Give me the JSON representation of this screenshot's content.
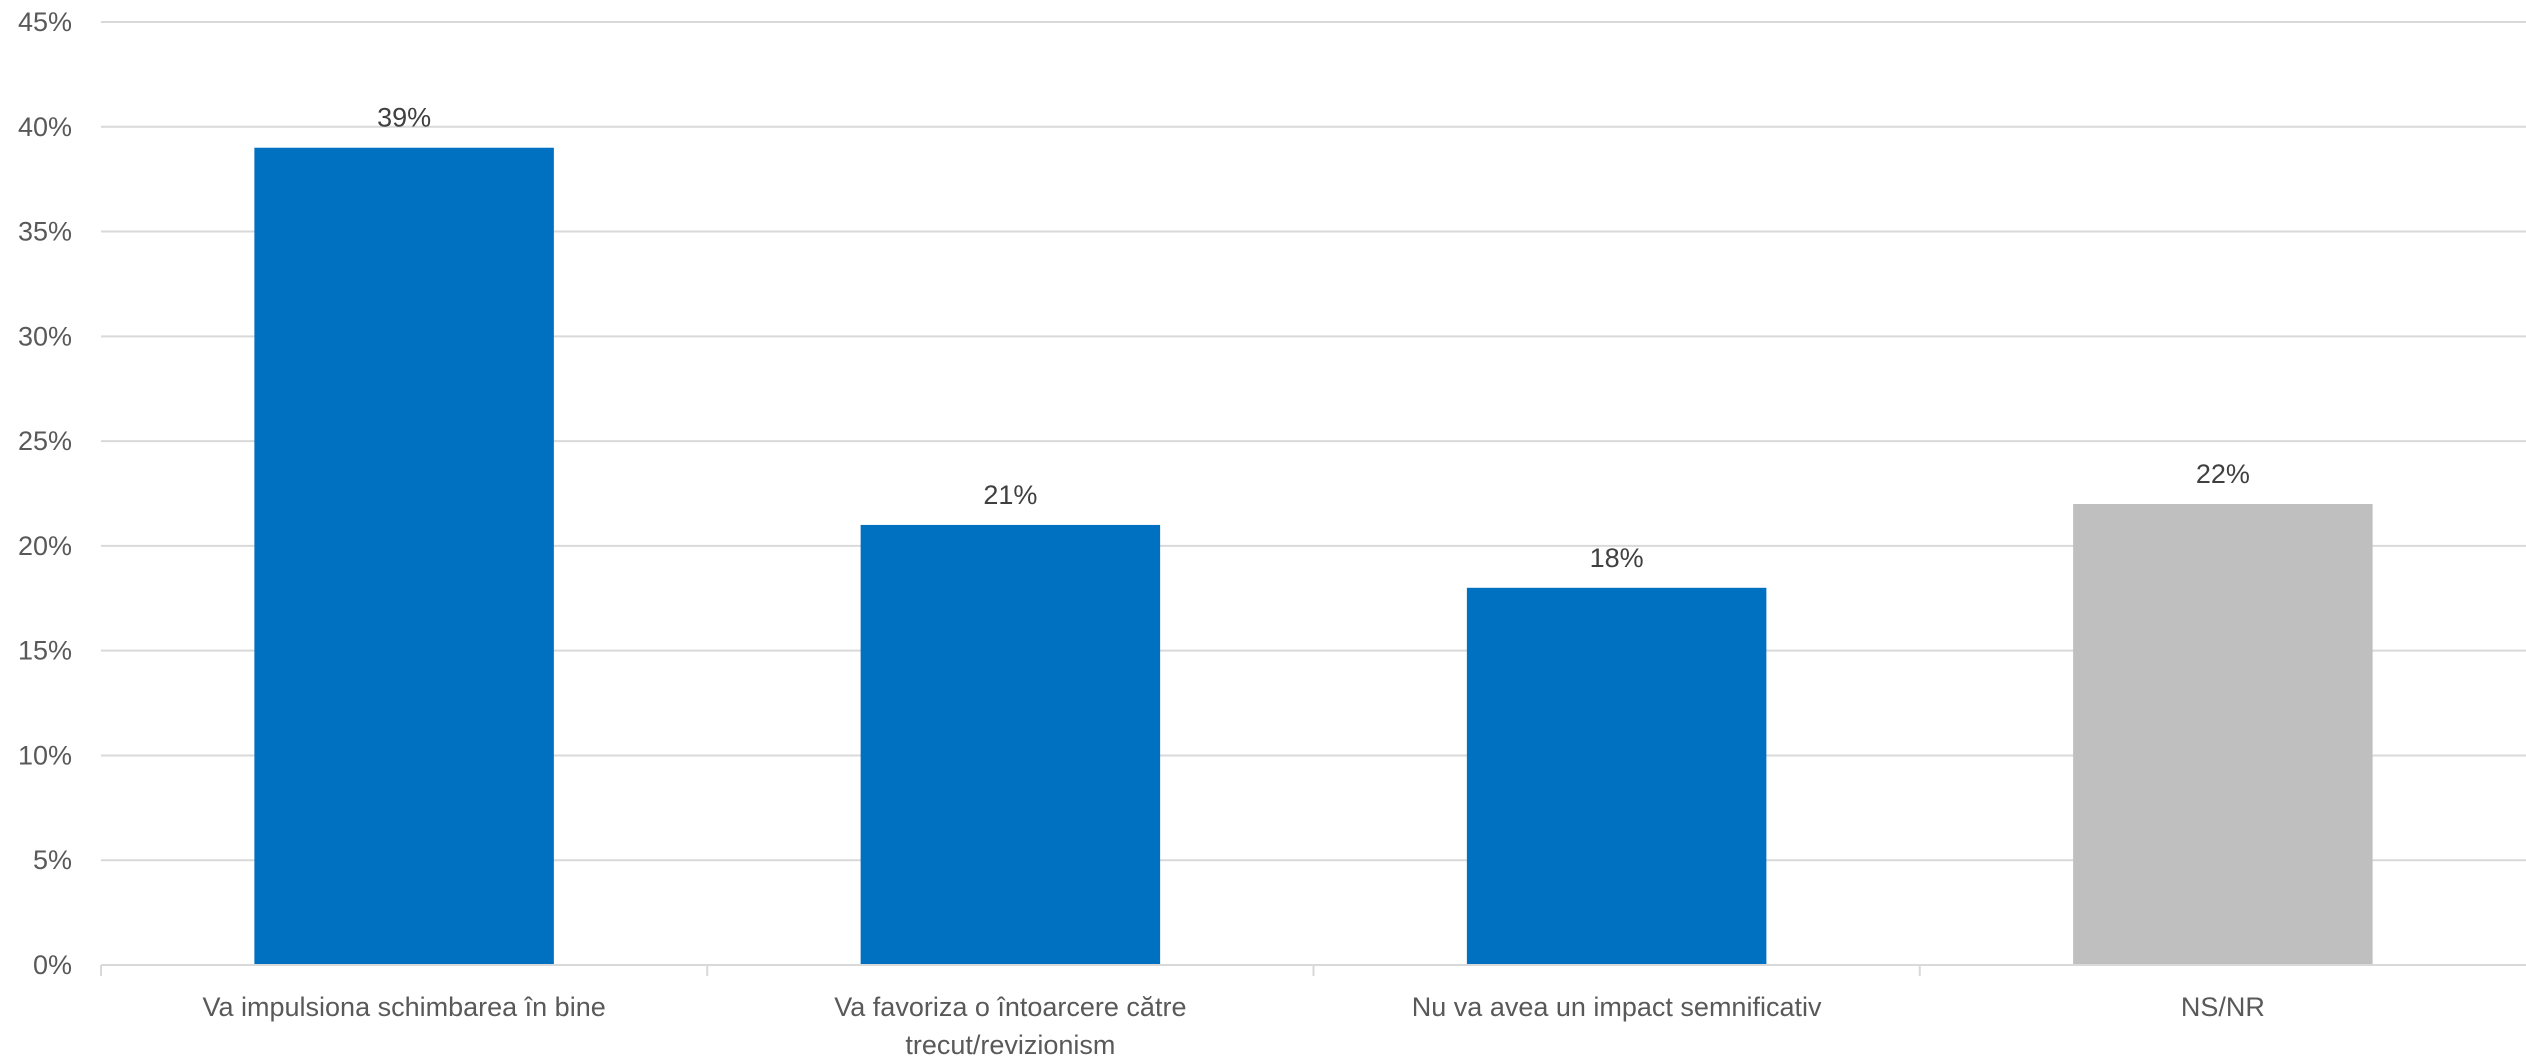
{
  "chart_data": {
    "type": "bar",
    "categories": [
      "Va impulsiona schimbarea în bine",
      "Va favoriza o întoarcere către trecut/revizionism",
      "Nu va avea un impact semnificativ",
      "NS/NR"
    ],
    "category_lines": [
      [
        "Va impulsiona schimbarea în bine"
      ],
      [
        "Va favoriza o întoarcere către",
        "trecut/revizionism"
      ],
      [
        "Nu va avea un impact semnificativ"
      ],
      [
        "NS/NR"
      ]
    ],
    "values": [
      39,
      21,
      18,
      22
    ],
    "data_labels": [
      "39%",
      "21%",
      "18%",
      "22%"
    ],
    "bar_colors": [
      "#0070C0",
      "#0070C0",
      "#0070C0",
      "#BFBFBF"
    ],
    "ylim": [
      0,
      45
    ],
    "yticks": [
      0,
      5,
      10,
      15,
      20,
      25,
      30,
      35,
      40,
      45
    ],
    "ytick_labels": [
      "0%",
      "5%",
      "10%",
      "15%",
      "20%",
      "25%",
      "30%",
      "35%",
      "40%",
      "45%"
    ],
    "grid": true,
    "legend": "none",
    "title": "",
    "xlabel": "",
    "ylabel": "",
    "colors": {
      "grid": "#D9D9D9",
      "axis": "#D9D9D9",
      "tick_text": "#595959",
      "label_text": "#404040"
    }
  }
}
